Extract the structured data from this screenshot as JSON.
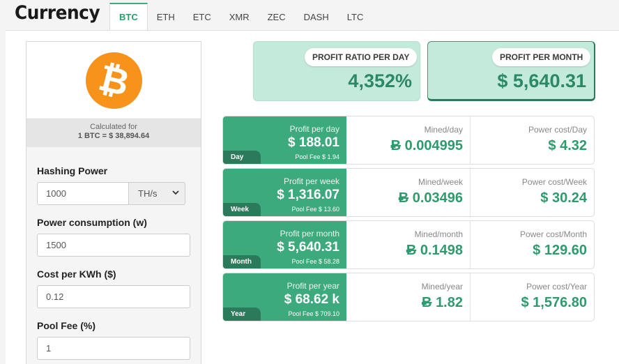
{
  "header": {
    "title": "Currency",
    "tabs": [
      {
        "label": "BTC",
        "active": true
      },
      {
        "label": "ETH"
      },
      {
        "label": "ETC"
      },
      {
        "label": "XMR"
      },
      {
        "label": "ZEC"
      },
      {
        "label": "DASH"
      },
      {
        "label": "LTC"
      }
    ]
  },
  "coin": {
    "logo_symbol": "₿",
    "logo_color": "#f7931a",
    "calculated_for": "Calculated for",
    "rate": "1 BTC = $ 38,894.64"
  },
  "form": {
    "hashing_power": {
      "label": "Hashing Power",
      "value": "1000",
      "unit": "TH/s"
    },
    "power_consumption": {
      "label": "Power consumption (w)",
      "value": "1500"
    },
    "cost_per_kwh": {
      "label": "Cost per KWh ($)",
      "value": "0.12"
    },
    "pool_fee": {
      "label": "Pool Fee (%)",
      "value": "1"
    }
  },
  "summary": {
    "profit_ratio": {
      "label": "PROFIT RATIO PER DAY",
      "value": "4,352%"
    },
    "profit_month": {
      "label": "PROFIT PER MONTH",
      "value": "$ 5,640.31"
    }
  },
  "rows": [
    {
      "period": "Day",
      "profit_label": "Profit per day",
      "profit": "$ 188.01",
      "pool_fee": "Pool Fee $ 1.94",
      "mined_label": "Mined/day",
      "mined_sym": "Ƀ",
      "mined": "0.004995",
      "power_label": "Power cost/Day",
      "power": "$ 4.32"
    },
    {
      "period": "Week",
      "profit_label": "Profit per week",
      "profit": "$ 1,316.07",
      "pool_fee": "Pool Fee $ 13.60",
      "mined_label": "Mined/week",
      "mined_sym": "Ƀ",
      "mined": "0.03496",
      "power_label": "Power cost/Week",
      "power": "$ 30.24"
    },
    {
      "period": "Month",
      "profit_label": "Profit per month",
      "profit": "$ 5,640.31",
      "pool_fee": "Pool Fee $ 58.28",
      "mined_label": "Mined/month",
      "mined_sym": "Ƀ",
      "mined": "0.1498",
      "power_label": "Power cost/Month",
      "power": "$ 129.60"
    },
    {
      "period": "Year",
      "profit_label": "Profit per year",
      "profit": "$ 68.62 k",
      "pool_fee": "Pool Fee $ 709.10",
      "mined_label": "Mined/year",
      "mined_sym": "Ƀ",
      "mined": "1.82",
      "power_label": "Power cost/Year",
      "power": "$ 1,576.80"
    }
  ],
  "colors": {
    "accent": "#3daa7d",
    "accent_dark": "#2b7a5b",
    "value_green": "#2e9b6e",
    "summary_bg": "#c4eadb"
  }
}
